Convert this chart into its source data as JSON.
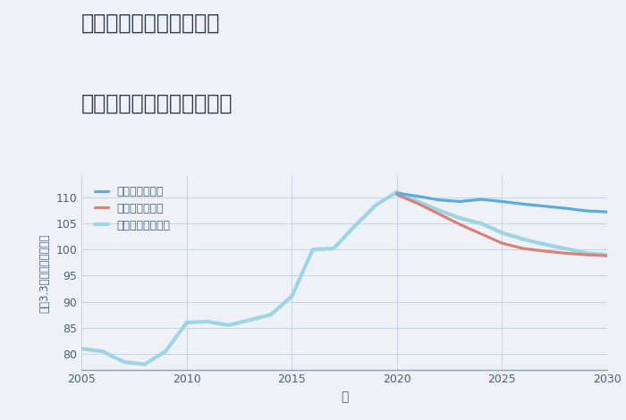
{
  "title_line1": "兵庫県姫路市夢前町寺の",
  "title_line2": "中古マンションの価格推移",
  "xlabel": "年",
  "ylabel": "坪（3.3㎡）単価（万円）",
  "background_color": "#eef2f7",
  "plot_background": "#eef2f7",
  "xlim": [
    2005,
    2030
  ],
  "ylim": [
    77,
    114
  ],
  "yticks": [
    80,
    85,
    90,
    95,
    100,
    105,
    110
  ],
  "xticks": [
    2005,
    2010,
    2015,
    2020,
    2025,
    2030
  ],
  "grid_color": "#c5d5e5",
  "title_color": "#2a3a4a",
  "axis_color": "#4a6080",
  "spine_color": "#8aa0b8",
  "series": {
    "good": {
      "label": "グッドシナリオ",
      "color": "#5aabdf",
      "linewidth": 2.3,
      "years": [
        2020,
        2021,
        2022,
        2023,
        2024,
        2025,
        2026,
        2027,
        2028,
        2029,
        2030
      ],
      "values": [
        110.8,
        110.2,
        109.5,
        109.2,
        109.6,
        109.2,
        108.7,
        108.3,
        107.9,
        107.4,
        107.2
      ]
    },
    "bad": {
      "label": "バッドシナリオ",
      "color": "#d9827a",
      "linewidth": 2.3,
      "years": [
        2020,
        2021,
        2022,
        2023,
        2024,
        2025,
        2026,
        2027,
        2028,
        2029,
        2030
      ],
      "values": [
        110.5,
        108.8,
        106.8,
        104.8,
        103.0,
        101.2,
        100.2,
        99.7,
        99.3,
        99.0,
        98.8
      ]
    },
    "normal": {
      "label": "ノーマルシナリオ",
      "color": "#9dd5e5",
      "linewidth": 3.0,
      "years": [
        2005,
        2006,
        2007,
        2008,
        2009,
        2010,
        2011,
        2012,
        2013,
        2014,
        2015,
        2016,
        2017,
        2018,
        2019,
        2020,
        2021,
        2022,
        2023,
        2024,
        2025,
        2026,
        2027,
        2028,
        2029,
        2030
      ],
      "values": [
        81.0,
        80.5,
        78.5,
        78.0,
        80.5,
        86.0,
        86.2,
        85.5,
        86.5,
        87.5,
        91.0,
        100.0,
        100.2,
        104.5,
        108.5,
        111.0,
        109.2,
        107.5,
        106.0,
        105.0,
        103.2,
        102.0,
        101.0,
        100.2,
        99.3,
        99.0
      ]
    }
  }
}
